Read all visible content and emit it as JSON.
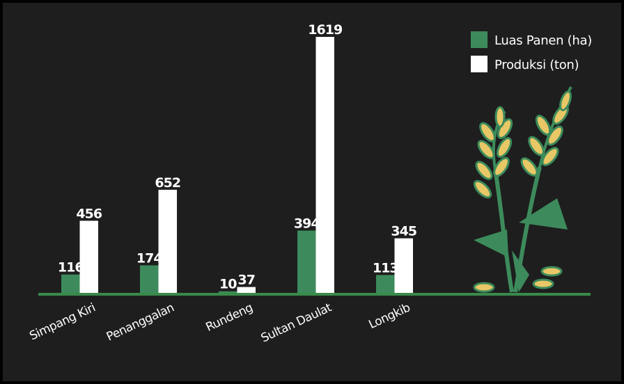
{
  "chart_data": {
    "type": "bar",
    "categories": [
      "Simpang Kiri",
      "Penanggalan",
      "Rundeng",
      "Sultan Daulat",
      "Longkib"
    ],
    "series": [
      {
        "name": "Luas Panen (ha)",
        "color": "#3d8b5c",
        "values": [
          116,
          174,
          10,
          394,
          113
        ]
      },
      {
        "name": "Produksi (ton)",
        "color": "#ffffff",
        "values": [
          456,
          652,
          37,
          1619,
          345
        ]
      }
    ],
    "legend": "top-right"
  }
}
